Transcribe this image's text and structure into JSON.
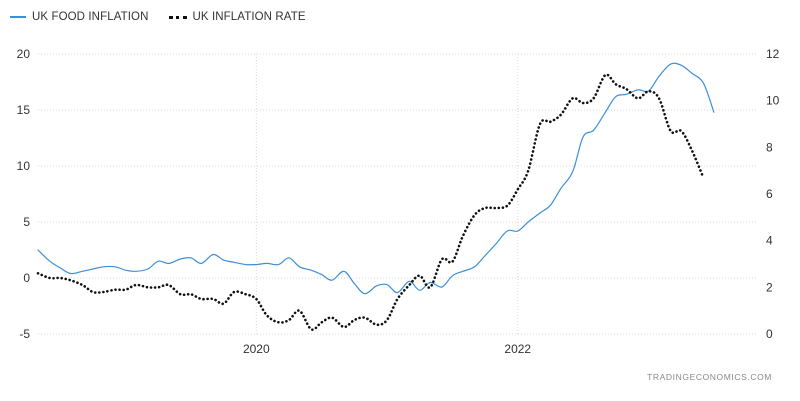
{
  "legend": {
    "food_label": "UK FOOD INFLATION",
    "rate_label": "UK INFLATION RATE"
  },
  "watermark": "TRADINGECONOMICS.COM",
  "chart_data": {
    "type": "line",
    "x_range": [
      2018.33,
      2023.83
    ],
    "x_ticks": [
      {
        "value": 2020,
        "label": "2020"
      },
      {
        "value": 2022,
        "label": "2022"
      }
    ],
    "left_axis": {
      "min": -5,
      "max": 20,
      "ticks": [
        20,
        15,
        10,
        5,
        0,
        -5
      ]
    },
    "right_axis": {
      "min": 0,
      "max": 12,
      "ticks": [
        12,
        10,
        8,
        6,
        4,
        2,
        0
      ]
    },
    "grid": true,
    "legend_position": "top-left",
    "series": [
      {
        "name": "UK FOOD INFLATION",
        "axis": "left",
        "color": "#3d8fd8",
        "style": "solid",
        "points": [
          [
            2018.33,
            2.5
          ],
          [
            2018.42,
            1.5
          ],
          [
            2018.5,
            0.9
          ],
          [
            2018.58,
            0.4
          ],
          [
            2018.67,
            0.6
          ],
          [
            2018.75,
            0.8
          ],
          [
            2018.83,
            1.0
          ],
          [
            2018.92,
            1.0
          ],
          [
            2019.0,
            0.7
          ],
          [
            2019.08,
            0.6
          ],
          [
            2019.17,
            0.8
          ],
          [
            2019.25,
            1.5
          ],
          [
            2019.33,
            1.3
          ],
          [
            2019.42,
            1.7
          ],
          [
            2019.5,
            1.8
          ],
          [
            2019.58,
            1.3
          ],
          [
            2019.67,
            2.1
          ],
          [
            2019.75,
            1.6
          ],
          [
            2019.83,
            1.4
          ],
          [
            2019.92,
            1.2
          ],
          [
            2020.0,
            1.2
          ],
          [
            2020.08,
            1.3
          ],
          [
            2020.17,
            1.2
          ],
          [
            2020.25,
            1.8
          ],
          [
            2020.33,
            1.0
          ],
          [
            2020.42,
            0.7
          ],
          [
            2020.5,
            0.3
          ],
          [
            2020.58,
            -0.2
          ],
          [
            2020.67,
            0.6
          ],
          [
            2020.75,
            -0.5
          ],
          [
            2020.83,
            -1.4
          ],
          [
            2020.92,
            -0.7
          ],
          [
            2021.0,
            -0.6
          ],
          [
            2021.08,
            -1.3
          ],
          [
            2021.17,
            -0.3
          ],
          [
            2021.25,
            -1.1
          ],
          [
            2021.33,
            -0.4
          ],
          [
            2021.42,
            -0.8
          ],
          [
            2021.5,
            0.2
          ],
          [
            2021.58,
            0.6
          ],
          [
            2021.67,
            1.0
          ],
          [
            2021.75,
            2.0
          ],
          [
            2021.83,
            3.0
          ],
          [
            2021.92,
            4.2
          ],
          [
            2022.0,
            4.2
          ],
          [
            2022.08,
            5.0
          ],
          [
            2022.17,
            5.8
          ],
          [
            2022.25,
            6.5
          ],
          [
            2022.33,
            8.0
          ],
          [
            2022.42,
            9.5
          ],
          [
            2022.5,
            12.6
          ],
          [
            2022.58,
            13.2
          ],
          [
            2022.67,
            14.8
          ],
          [
            2022.75,
            16.2
          ],
          [
            2022.83,
            16.4
          ],
          [
            2022.92,
            16.8
          ],
          [
            2023.0,
            16.7
          ],
          [
            2023.08,
            18.0
          ],
          [
            2023.17,
            19.1
          ],
          [
            2023.25,
            19.0
          ],
          [
            2023.33,
            18.3
          ],
          [
            2023.42,
            17.4
          ],
          [
            2023.5,
            14.8
          ]
        ]
      },
      {
        "name": "UK INFLATION RATE",
        "axis": "right",
        "color": "#111111",
        "style": "dotted",
        "points": [
          [
            2018.33,
            2.6
          ],
          [
            2018.42,
            2.4
          ],
          [
            2018.5,
            2.4
          ],
          [
            2018.58,
            2.3
          ],
          [
            2018.67,
            2.1
          ],
          [
            2018.75,
            1.8
          ],
          [
            2018.83,
            1.8
          ],
          [
            2018.92,
            1.9
          ],
          [
            2019.0,
            1.9
          ],
          [
            2019.08,
            2.1
          ],
          [
            2019.17,
            2.0
          ],
          [
            2019.25,
            2.0
          ],
          [
            2019.33,
            2.1
          ],
          [
            2019.42,
            1.7
          ],
          [
            2019.5,
            1.7
          ],
          [
            2019.58,
            1.5
          ],
          [
            2019.67,
            1.5
          ],
          [
            2019.75,
            1.3
          ],
          [
            2019.83,
            1.8
          ],
          [
            2019.92,
            1.7
          ],
          [
            2020.0,
            1.5
          ],
          [
            2020.08,
            0.8
          ],
          [
            2020.17,
            0.5
          ],
          [
            2020.25,
            0.6
          ],
          [
            2020.33,
            1.0
          ],
          [
            2020.42,
            0.2
          ],
          [
            2020.5,
            0.5
          ],
          [
            2020.58,
            0.7
          ],
          [
            2020.67,
            0.3
          ],
          [
            2020.75,
            0.6
          ],
          [
            2020.83,
            0.7
          ],
          [
            2020.92,
            0.4
          ],
          [
            2021.0,
            0.6
          ],
          [
            2021.08,
            1.5
          ],
          [
            2021.17,
            2.1
          ],
          [
            2021.25,
            2.5
          ],
          [
            2021.33,
            2.0
          ],
          [
            2021.42,
            3.2
          ],
          [
            2021.5,
            3.1
          ],
          [
            2021.58,
            4.2
          ],
          [
            2021.67,
            5.1
          ],
          [
            2021.75,
            5.4
          ],
          [
            2021.83,
            5.4
          ],
          [
            2021.92,
            5.5
          ],
          [
            2022.0,
            6.2
          ],
          [
            2022.08,
            7.0
          ],
          [
            2022.17,
            9.0
          ],
          [
            2022.25,
            9.1
          ],
          [
            2022.33,
            9.4
          ],
          [
            2022.42,
            10.1
          ],
          [
            2022.5,
            9.9
          ],
          [
            2022.58,
            10.1
          ],
          [
            2022.67,
            11.1
          ],
          [
            2022.75,
            10.7
          ],
          [
            2022.83,
            10.5
          ],
          [
            2022.92,
            10.1
          ],
          [
            2023.0,
            10.4
          ],
          [
            2023.08,
            10.1
          ],
          [
            2023.17,
            8.7
          ],
          [
            2023.25,
            8.7
          ],
          [
            2023.33,
            7.9
          ],
          [
            2023.42,
            6.7
          ]
        ]
      }
    ]
  }
}
